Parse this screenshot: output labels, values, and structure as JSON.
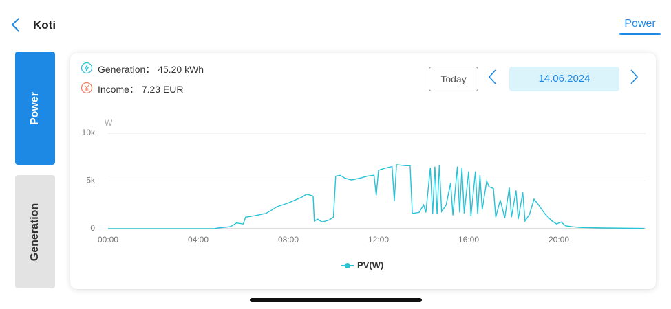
{
  "header": {
    "title": "Koti",
    "tab": "Power"
  },
  "sidebar": {
    "tabs": [
      "Power",
      "Generation"
    ]
  },
  "summary": {
    "generation_label": "Generation：",
    "generation_value": "45.20 kWh",
    "income_label": "Income：",
    "income_value": "7.23 EUR"
  },
  "date_nav": {
    "today": "Today",
    "date": "14.06.2024"
  },
  "chart_data": {
    "type": "line",
    "y_unit": "W",
    "x": [
      0,
      4.7,
      4.8,
      5.0,
      5.4,
      5.5,
      5.7,
      6.0,
      6.1,
      6.5,
      7.0,
      7.3,
      7.5,
      8.0,
      8.3,
      8.6,
      8.8,
      9.0,
      9.1,
      9.15,
      9.3,
      9.5,
      9.8,
      10.0,
      10.1,
      10.3,
      10.5,
      10.8,
      11.2,
      11.5,
      11.8,
      11.9,
      12.0,
      12.1,
      12.4,
      12.6,
      12.7,
      12.8,
      13.2,
      13.4,
      13.5,
      13.8,
      14.0,
      14.1,
      14.3,
      14.4,
      14.5,
      14.6,
      14.7,
      14.8,
      15.0,
      15.2,
      15.3,
      15.5,
      15.6,
      15.7,
      15.8,
      16.0,
      16.1,
      16.3,
      16.4,
      16.5,
      16.6,
      16.8,
      16.9,
      17.1,
      17.2,
      17.4,
      17.6,
      17.8,
      17.9,
      18.1,
      18.2,
      18.4,
      18.5,
      18.7,
      18.9,
      19.1,
      19.4,
      19.7,
      19.9,
      20.1,
      20.3,
      20.6,
      21.0,
      22.0,
      23.0,
      23.8
    ],
    "series": [
      {
        "name": "PV(W)",
        "color": "#26c2d6",
        "values": [
          0,
          0,
          50,
          100,
          200,
          300,
          600,
          500,
          1200,
          1350,
          1600,
          2000,
          2300,
          2700,
          3000,
          3300,
          3600,
          3500,
          3400,
          800,
          1000,
          700,
          900,
          1200,
          5500,
          5600,
          5300,
          5100,
          5300,
          5500,
          5600,
          3500,
          6100,
          6200,
          6400,
          6500,
          2900,
          6700,
          6600,
          6600,
          1600,
          1700,
          2500,
          1700,
          6400,
          1500,
          6500,
          1500,
          6700,
          1800,
          2500,
          4800,
          1400,
          6500,
          1700,
          6400,
          1600,
          6000,
          1300,
          6000,
          1500,
          5600,
          2000,
          5000,
          4400,
          4200,
          1200,
          3000,
          1100,
          4300,
          1200,
          4000,
          1000,
          3800,
          800,
          1500,
          3100,
          2500,
          1500,
          800,
          500,
          700,
          300,
          200,
          120,
          80,
          50,
          30
        ]
      }
    ],
    "xlim": [
      0,
      24
    ],
    "xticks": [
      {
        "value": 0,
        "label": "00:00"
      },
      {
        "value": 4,
        "label": "04:00"
      },
      {
        "value": 8,
        "label": "08:00"
      },
      {
        "value": 12,
        "label": "12:00"
      },
      {
        "value": 16,
        "label": "16:00"
      },
      {
        "value": 20,
        "label": "20:00"
      }
    ],
    "ylim": [
      0,
      10000
    ],
    "yticks": [
      0,
      {
        "value": 5000,
        "label": "5k"
      },
      {
        "value": 10000,
        "label": "10k"
      }
    ],
    "grid": true
  }
}
